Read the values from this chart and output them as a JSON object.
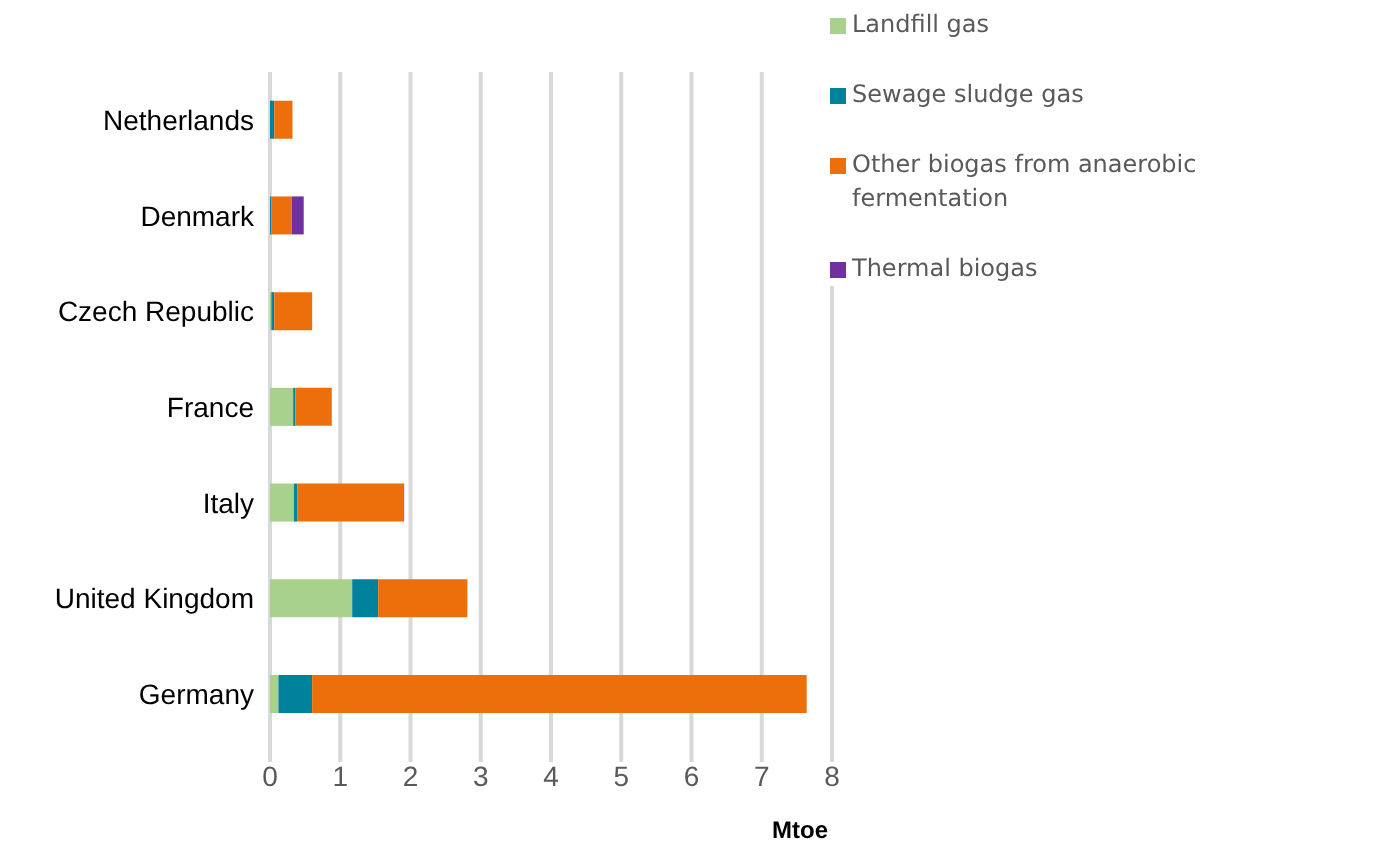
{
  "chart_data": {
    "type": "bar",
    "orientation": "horizontal",
    "stacked": true,
    "xlabel": "Mtoe",
    "categories": [
      "Netherlands",
      "Denmark",
      "Czech Republic",
      "France",
      "Italy",
      "United Kingdom",
      "Germany"
    ],
    "series": [
      {
        "name": "Landfill gas",
        "color": "#a9d18e",
        "values": [
          0,
          0,
          0.02,
          0.33,
          0.34,
          1.17,
          0.12
        ]
      },
      {
        "name": "Sewage sludge gas",
        "color": "#00819c",
        "values": [
          0.06,
          0.02,
          0.04,
          0.03,
          0.05,
          0.37,
          0.48
        ]
      },
      {
        "name": "Other biogas from anaerobic fermentation",
        "color": "#ed6f0b",
        "values": [
          0.26,
          0.29,
          0.54,
          0.52,
          1.51,
          1.27,
          7.04
        ]
      },
      {
        "name": "Thermal biogas",
        "color": "#7030a0",
        "values": [
          0,
          0.17,
          0,
          0,
          0.01,
          0,
          0
        ]
      }
    ],
    "xlim": [
      0,
      8
    ],
    "xticks": [
      0,
      1,
      2,
      3,
      4,
      5,
      6,
      7,
      8
    ],
    "grid": "x",
    "legend": "top right"
  }
}
